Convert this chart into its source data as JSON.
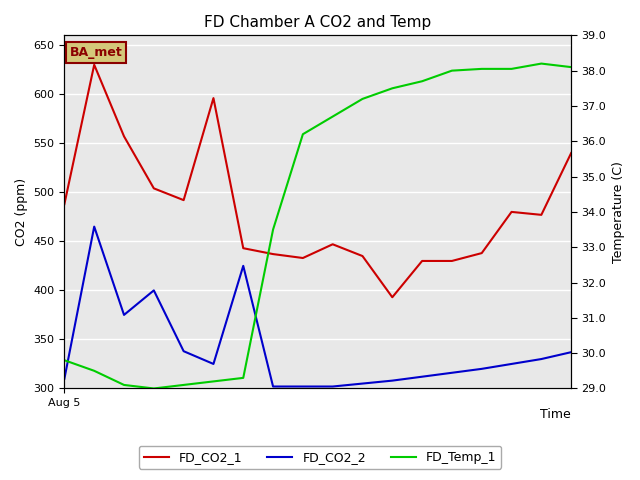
{
  "title": "FD Chamber A CO2 and Temp",
  "xlabel": "Time",
  "ylabel_left": "CO2 (ppm)",
  "ylabel_right": "Temperature (C)",
  "annotation_text": "BA_met",
  "annotation_color": "#8B0000",
  "annotation_bg": "#d4c87a",
  "ylim_left": [
    300,
    660
  ],
  "ylim_right": [
    29.0,
    39.0
  ],
  "yticks_left": [
    300,
    350,
    400,
    450,
    500,
    550,
    600,
    650
  ],
  "yticks_right": [
    29.0,
    30.0,
    31.0,
    32.0,
    33.0,
    34.0,
    35.0,
    36.0,
    37.0,
    38.0,
    39.0
  ],
  "fig_bg_color": "#ffffff",
  "plot_bg_color": "#e8e8e8",
  "grid_color": "#ffffff",
  "x_start_label": "Aug 5",
  "fd_co2_1_color": "#cc0000",
  "fd_co2_2_color": "#0000cc",
  "fd_temp_1_color": "#00cc00",
  "fd_co2_1": [
    488,
    630,
    557,
    504,
    492,
    596,
    443,
    437,
    433,
    447,
    435,
    393,
    430,
    430,
    438,
    480,
    477,
    540
  ],
  "fd_co2_2": [
    310,
    465,
    375,
    400,
    338,
    325,
    425,
    302,
    302,
    302,
    305,
    308,
    312,
    316,
    320,
    325,
    330,
    337
  ],
  "fd_temp_1": [
    29.8,
    29.5,
    29.1,
    29.0,
    29.1,
    29.2,
    29.3,
    33.5,
    36.2,
    36.7,
    37.2,
    37.5,
    37.7,
    38.0,
    38.05,
    38.05,
    38.2,
    38.1
  ],
  "x_values": [
    0,
    1,
    2,
    3,
    4,
    5,
    6,
    7,
    8,
    9,
    10,
    11,
    12,
    13,
    14,
    15,
    16,
    17
  ],
  "legend_entries": [
    "FD_CO2_1",
    "FD_CO2_2",
    "FD_Temp_1"
  ]
}
